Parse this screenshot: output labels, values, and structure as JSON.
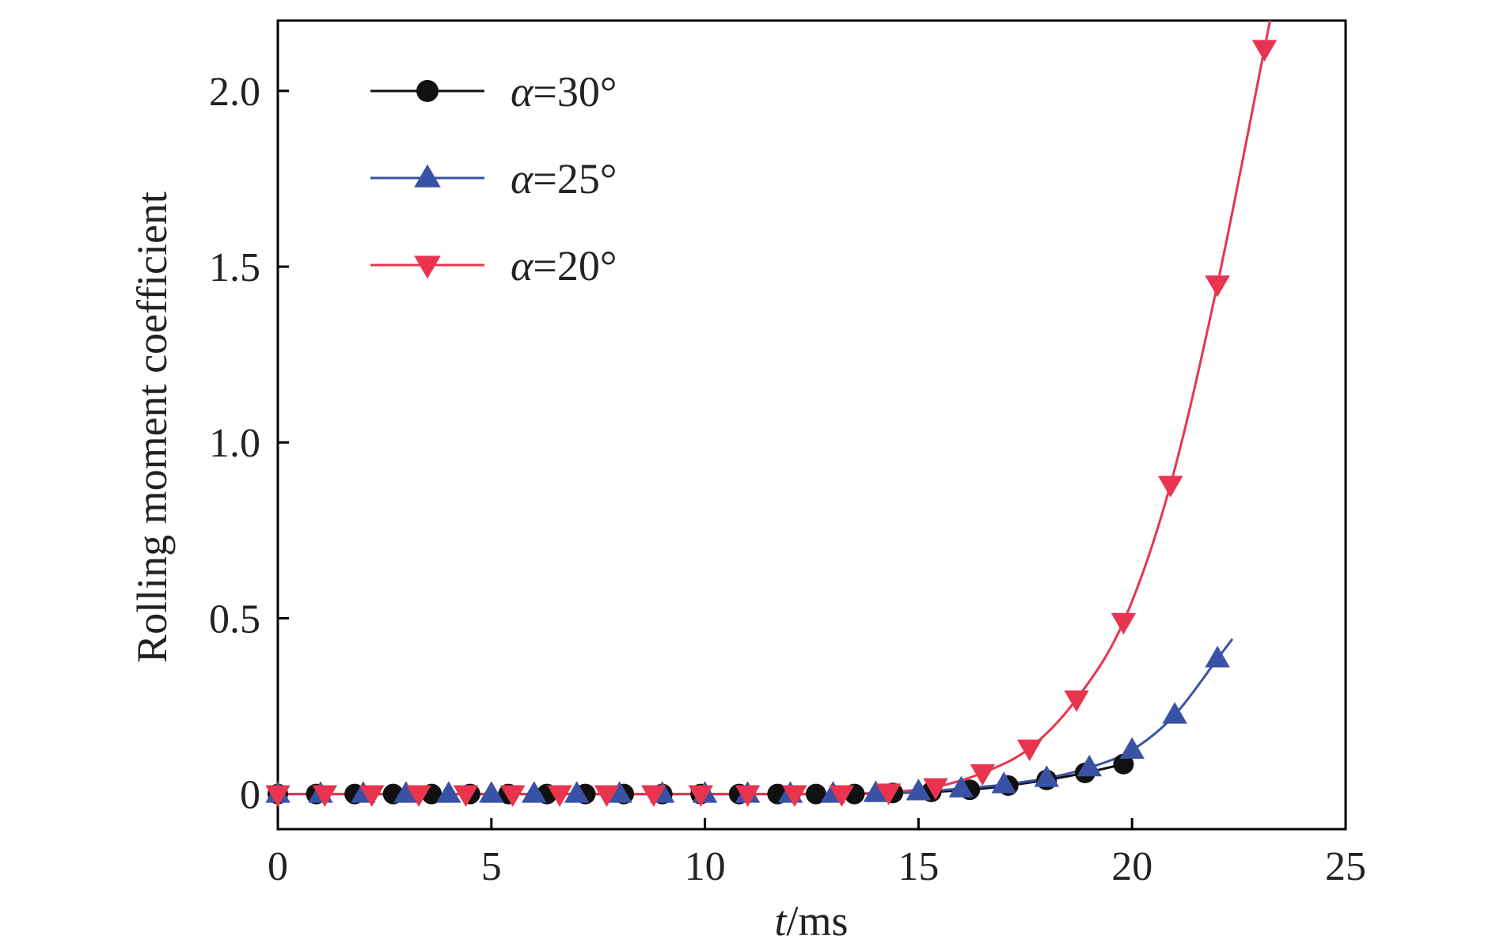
{
  "chart_data": {
    "type": "line",
    "xlabel": {
      "italic": "t",
      "rest": "/ms"
    },
    "ylabel": "Rolling moment coefficient",
    "xlim": [
      0,
      25
    ],
    "ylim": [
      -0.1,
      2.2
    ],
    "x_ticks": [
      "0",
      "5",
      "10",
      "15",
      "20",
      "25"
    ],
    "y_ticks": [
      "0",
      "0.5",
      "1.0",
      "1.5",
      "2.0"
    ],
    "grid": false,
    "legend_position": "top-left",
    "series": [
      {
        "name": "α=30°",
        "color": "#111111",
        "marker": "circle",
        "x": [
          0,
          0.9,
          1.8,
          2.7,
          3.6,
          4.5,
          5.4,
          6.3,
          7.2,
          8.1,
          9.0,
          9.9,
          10.8,
          11.7,
          12.6,
          13.5,
          14.4,
          15.3,
          16.2,
          17.1,
          18.0,
          18.9,
          19.8
        ],
        "y": [
          0,
          0,
          0,
          0,
          0,
          0,
          0,
          0,
          0,
          0,
          0,
          0,
          0,
          0,
          0,
          0,
          0.003,
          0.006,
          0.012,
          0.024,
          0.04,
          0.06,
          0.085
        ]
      },
      {
        "name": "α=25°",
        "color": "#3a52a6",
        "marker": "triangle-up",
        "x": [
          0,
          1.0,
          2.0,
          3.0,
          4.0,
          5.0,
          6.0,
          7.0,
          8.0,
          9.0,
          10.0,
          11.0,
          12.0,
          13.0,
          14.0,
          15.0,
          16.0,
          17.0,
          18.0,
          19.0,
          20.0,
          21.0,
          22.0
        ],
        "y": [
          0,
          0,
          0,
          0,
          0,
          0,
          0,
          0,
          0,
          0,
          0,
          0,
          0,
          0,
          0.002,
          0.007,
          0.015,
          0.027,
          0.045,
          0.075,
          0.125,
          0.225,
          0.385
        ]
      },
      {
        "name": "α=20°",
        "color": "#e8344e",
        "marker": "triangle-down",
        "x": [
          0,
          1.1,
          2.2,
          3.3,
          4.4,
          5.5,
          6.6,
          7.7,
          8.8,
          9.9,
          11.0,
          12.1,
          13.2,
          14.3,
          15.4,
          16.5,
          17.6,
          18.7,
          19.8,
          20.9,
          22.0,
          23.1
        ],
        "y": [
          0,
          0,
          0,
          0,
          0,
          0,
          0,
          0,
          0,
          0,
          0,
          0,
          0,
          0.005,
          0.02,
          0.06,
          0.13,
          0.27,
          0.49,
          0.88,
          1.45,
          2.12
        ]
      }
    ]
  }
}
